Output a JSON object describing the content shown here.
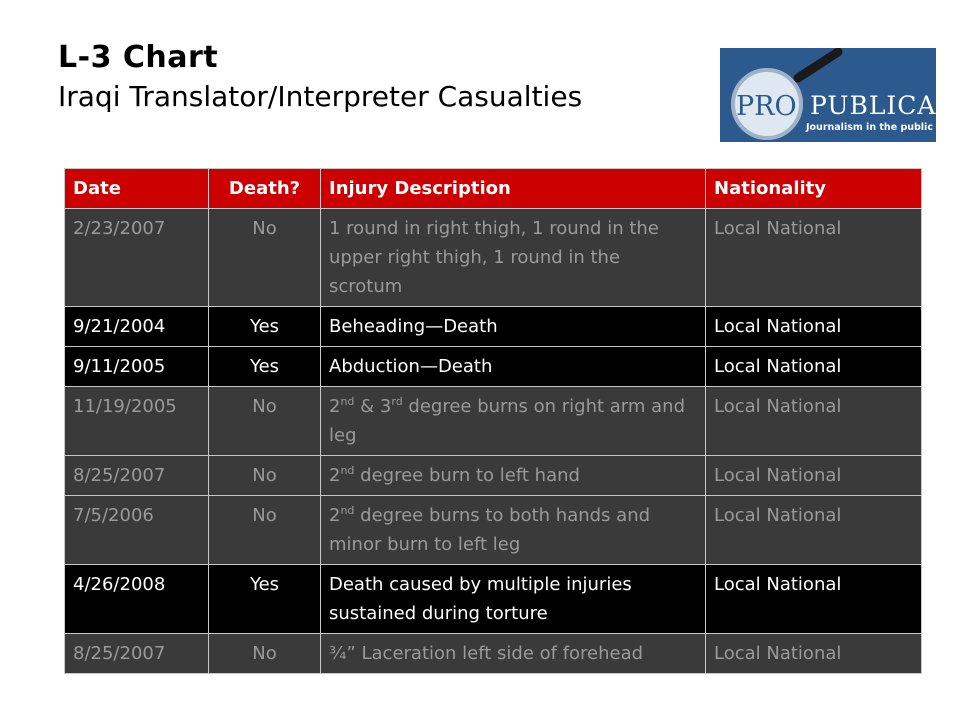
{
  "title": {
    "main": "L-3 Chart",
    "subtitle": "Iraqi Translator/Interpreter Casualties"
  },
  "logo": {
    "pro": "PRO",
    "publica": "PUBLICA",
    "tagline": "Journalism in the public interest",
    "colors": {
      "background": "#2d5a8e",
      "lens": "#e8eef5",
      "text": "#ffffff",
      "pro_text": "#2d5a8e"
    }
  },
  "table": {
    "headers": [
      "Date",
      "Death?",
      "Injury Description",
      "Nationality"
    ],
    "colors": {
      "header_bg": "#cc0000",
      "gray_row_bg": "#3a3a3a",
      "gray_row_text": "#9a9a9a",
      "black_row_bg": "#000000",
      "black_row_text": "#ffffff"
    },
    "rows": [
      {
        "style": "gray",
        "date": "2/23/2007",
        "death": "No",
        "injury": {
          "text": "1 round in right thigh, 1 round in the upper right thigh, 1 round in the scrotum"
        },
        "nationality": "Local National"
      },
      {
        "style": "black",
        "date": "9/21/2004",
        "death": "Yes",
        "injury": {
          "text": "Beheading—Death"
        },
        "nationality": "Local National"
      },
      {
        "style": "black",
        "date": "9/11/2005",
        "death": "Yes",
        "injury": {
          "text": "Abduction—Death"
        },
        "nationality": "Local National"
      },
      {
        "style": "gray",
        "date": "11/19/2005",
        "death": "No",
        "injury": {
          "n1": "2",
          "s1": "nd",
          "mid": " & 3",
          "s2": "rd",
          "rest": " degree burns on right arm and leg"
        },
        "nationality": "Local National"
      },
      {
        "style": "gray",
        "date": "8/25/2007",
        "death": "No",
        "injury": {
          "n1": "2",
          "s1": "nd",
          "rest": " degree burn to left hand"
        },
        "nationality": "Local National"
      },
      {
        "style": "gray",
        "date": "7/5/2006",
        "death": "No",
        "injury": {
          "n1": "2",
          "s1": "nd",
          "rest": " degree burns to both hands and minor burn to left leg"
        },
        "nationality": "Local National"
      },
      {
        "style": "black",
        "date": "4/26/2008",
        "death": "Yes",
        "injury": {
          "text": "Death caused by multiple injuries sustained during torture"
        },
        "nationality": "Local National"
      },
      {
        "style": "gray",
        "date": "8/25/2007",
        "death": "No",
        "injury": {
          "text": "¾” Laceration left side of forehead"
        },
        "nationality": "Local National"
      }
    ]
  }
}
